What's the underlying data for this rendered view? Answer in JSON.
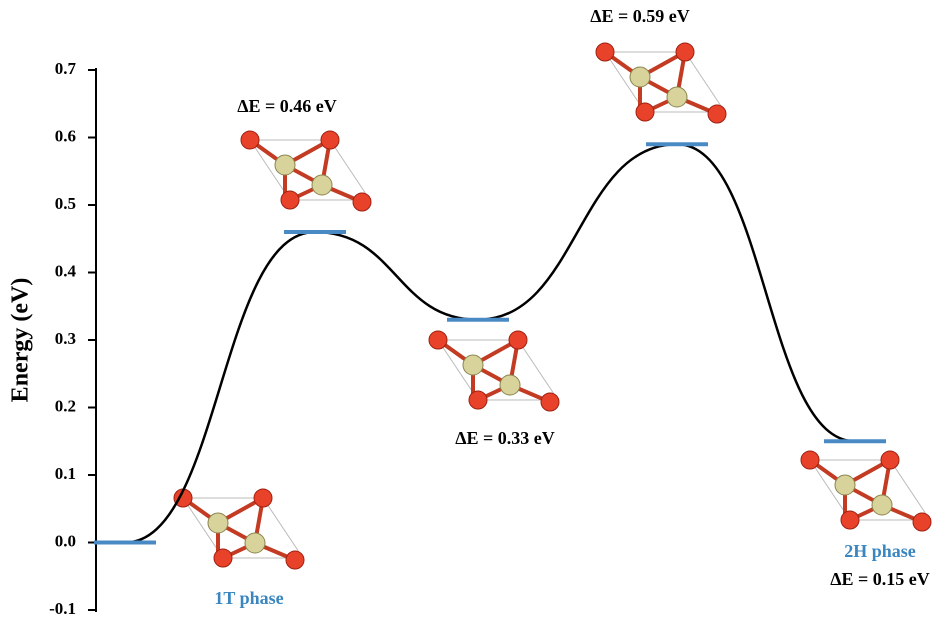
{
  "chart_data": {
    "type": "energy_profile",
    "y_label": "Energy (eV)",
    "categories": [
      null,
      null,
      null,
      null,
      null
    ],
    "values": [
      0,
      0.46,
      0.33,
      0.59,
      0.15
    ],
    "value_labels": [
      null,
      "ΔE = 0.46 eV",
      "ΔE = 0.33 eV",
      "ΔE = 0.59 eV",
      "ΔE = 0.15 eV"
    ],
    "annotations": [
      "1T phase",
      "2H phase"
    ],
    "level_color": "#4a8ac4",
    "curve_color": "#000000",
    "annotation_color": "#3a86c0",
    "ylim": [
      -0.1,
      0.7
    ],
    "yticks": [
      -0.1,
      {
        "value": 0,
        "label": "0.0"
      },
      0.1,
      0.2,
      0.3,
      0.4,
      0.5,
      0.6,
      0.7
    ]
  }
}
